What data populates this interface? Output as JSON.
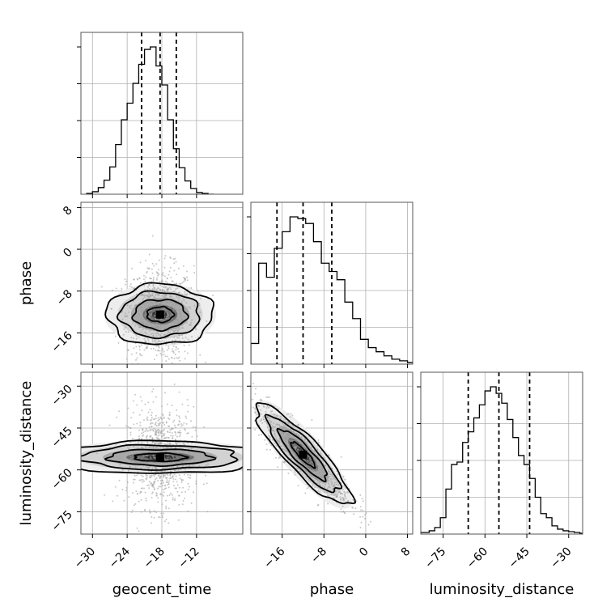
{
  "chart_data": {
    "type": "corner",
    "parameters": [
      "geocent_time",
      "phase",
      "luminosity_distance"
    ],
    "axis_labels": {
      "geocent_time": "geocent_time",
      "phase": "phase",
      "luminosity_distance": "luminosity_distance"
    },
    "ranges": {
      "geocent_time": [
        -32,
        -4
      ],
      "phase": [
        -22,
        9
      ],
      "luminosity_distance": [
        -83,
        -25
      ]
    },
    "ticks": {
      "geocent_time": [
        -30,
        -24,
        -18,
        -12
      ],
      "phase": [
        -16,
        -8,
        0,
        8
      ],
      "luminosity_distance": [
        -75,
        -60,
        -45,
        -30
      ]
    },
    "tick_labels": {
      "geocent_time": [
        "−30",
        "−24",
        "−18",
        "−12"
      ],
      "phase": [
        "−16",
        "−8",
        "0",
        "8"
      ],
      "luminosity_distance": [
        "−75",
        "−60",
        "−45",
        "−30"
      ]
    },
    "quantiles": {
      "geocent_time": [
        -21.5,
        -18.3,
        -15.5
      ],
      "phase": [
        -17,
        -12,
        -6.5
      ],
      "luminosity_distance": [
        -66,
        -55,
        -44
      ]
    },
    "histograms": {
      "geocent_time": {
        "edges": [
          -31,
          -30,
          -29,
          -28,
          -27,
          -26,
          -25,
          -24,
          -23,
          -22,
          -21,
          -20,
          -19,
          -18,
          -17,
          -16,
          -15,
          -14,
          -13,
          -12,
          -11,
          -10,
          -9
        ],
        "counts": [
          1,
          3,
          8,
          17,
          33,
          60,
          90,
          110,
          134,
          157,
          175,
          178,
          155,
          132,
          90,
          55,
          32,
          16,
          7,
          2,
          1,
          0
        ]
      },
      "phase": {
        "edges": [
          -22,
          -20.5,
          -19,
          -17.5,
          -16,
          -14.5,
          -13,
          -11.5,
          -10,
          -8.5,
          -7,
          -5.5,
          -4,
          -2.5,
          -1,
          0.5,
          2,
          3.5,
          5,
          6.5,
          8,
          9
        ],
        "counts": [
          25,
          122,
          105,
          140,
          160,
          178,
          176,
          170,
          148,
          122,
          112,
          102,
          75,
          55,
          30,
          20,
          15,
          10,
          6,
          4,
          2
        ]
      },
      "luminosity_distance": {
        "edges": [
          -83,
          -80,
          -78,
          -76,
          -74,
          -72,
          -70,
          -68,
          -66,
          -64,
          -62,
          -60,
          -58,
          -56,
          -54,
          -52,
          -50,
          -48,
          -46,
          -44,
          -42,
          -40,
          -38,
          -36,
          -34,
          -32,
          -30,
          -28,
          -26,
          -24
        ],
        "counts": [
          2,
          4,
          8,
          20,
          55,
          85,
          88,
          112,
          125,
          142,
          158,
          175,
          180,
          172,
          160,
          140,
          118,
          96,
          85,
          68,
          45,
          25,
          20,
          10,
          6,
          4,
          3,
          2,
          1
        ]
      }
    },
    "joint": {
      "geocent_time_phase": {
        "mean": [
          -18.3,
          -12.5
        ],
        "sd": [
          2.9,
          4.6
        ],
        "corr": 0.0
      },
      "geocent_time_luminosity_distance": {
        "mean": [
          -18.3,
          -55.5
        ],
        "sd": [
          2.9,
          9.0
        ],
        "corr": 0.0
      },
      "phase_luminosity_distance": {
        "mean": [
          -12.0,
          -54.5
        ],
        "sd": [
          4.6,
          9.0
        ],
        "corr": -0.88
      }
    },
    "contour_levels_sigma": [
      0.5,
      1.0,
      1.5,
      2.0
    ],
    "grid": true
  }
}
